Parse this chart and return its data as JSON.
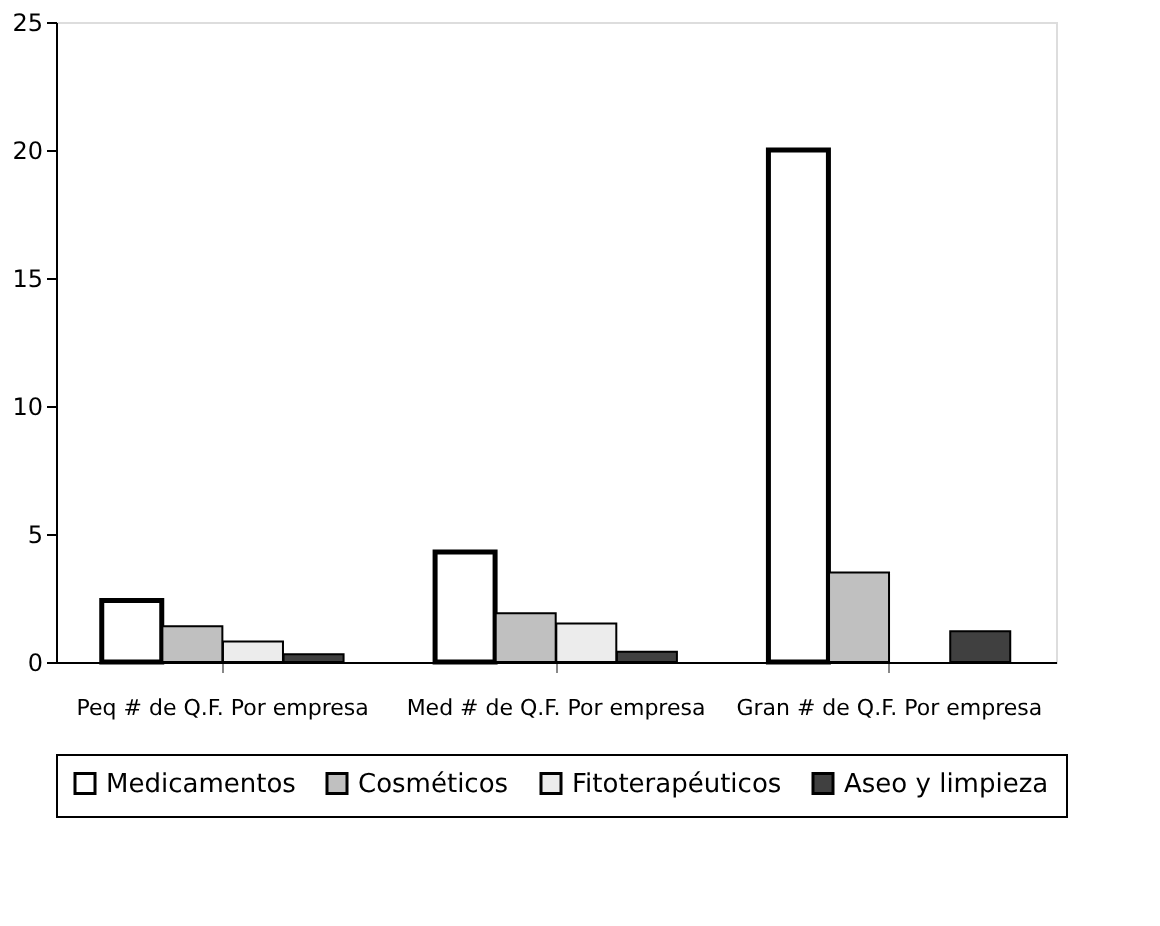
{
  "chart_data": {
    "type": "bar",
    "categories": [
      "Peq # de Q.F. Por empresa",
      "Med # de Q.F. Por empresa",
      "Gran # de Q.F. Por empresa"
    ],
    "series": [
      {
        "name": "Medicamentos",
        "color": "#ffffff",
        "values": [
          2.4,
          4.3,
          20
        ]
      },
      {
        "name": "Cosméticos",
        "color": "#c0c0c0",
        "values": [
          1.4,
          1.9,
          3.5
        ]
      },
      {
        "name": "Fitoterapéuticos",
        "color": "#ececec",
        "values": [
          0.8,
          1.5,
          null
        ]
      },
      {
        "name": "Aseo y limpieza",
        "color": "#404040",
        "values": [
          0.3,
          0.4,
          1.2
        ]
      }
    ],
    "ylim": [
      0,
      25
    ],
    "yticks": [
      0,
      5,
      10,
      15,
      20,
      25
    ],
    "grid": false,
    "legend": "bottom"
  }
}
